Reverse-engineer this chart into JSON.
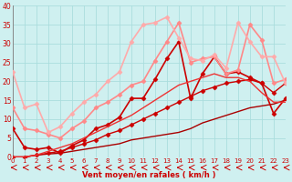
{
  "xlabel": "Vent moyen/en rafales ( km/h )",
  "bg_color": "#cff0f0",
  "grid_color": "#aadddd",
  "xmin": 0,
  "xmax": 23,
  "ymin": 0,
  "ymax": 40,
  "yticks": [
    0,
    5,
    10,
    15,
    20,
    25,
    30,
    35,
    40
  ],
  "series": [
    {
      "x": [
        0,
        1,
        2,
        3,
        4,
        5,
        6,
        7,
        8,
        9,
        10,
        11,
        12,
        13,
        14,
        15,
        16,
        17,
        18,
        19,
        20,
        21,
        22,
        23
      ],
      "y": [
        0,
        0,
        0.5,
        0.8,
        1.0,
        1.5,
        2.0,
        2.5,
        3.0,
        3.5,
        4.5,
        5.0,
        5.5,
        6.0,
        6.5,
        7.5,
        9.0,
        10.0,
        11.0,
        12.0,
        13.0,
        13.5,
        14.0,
        15.0
      ],
      "color": "#aa0000",
      "lw": 1.0,
      "marker": null
    },
    {
      "x": [
        0,
        1,
        2,
        3,
        4,
        5,
        6,
        7,
        8,
        9,
        10,
        11,
        12,
        13,
        14,
        15,
        16,
        17,
        18,
        19,
        20,
        21,
        22,
        23
      ],
      "y": [
        0,
        0,
        0.5,
        1.0,
        1.5,
        2.5,
        3.5,
        4.5,
        6.0,
        7.0,
        8.5,
        10.0,
        11.5,
        13.0,
        14.5,
        16.0,
        17.5,
        18.5,
        19.5,
        20.0,
        20.5,
        19.5,
        17.0,
        19.5
      ],
      "color": "#cc0000",
      "lw": 1.0,
      "marker": "D",
      "markersize": 2.5
    },
    {
      "x": [
        0,
        1,
        2,
        3,
        4,
        5,
        6,
        7,
        8,
        9,
        10,
        11,
        12,
        13,
        14,
        15,
        16,
        17,
        18,
        19,
        20,
        21,
        22,
        23
      ],
      "y": [
        7.5,
        2.5,
        2.0,
        2.5,
        1.0,
        3.0,
        4.5,
        7.5,
        8.5,
        10.5,
        15.5,
        15.5,
        20.5,
        26.0,
        30.5,
        15.5,
        22.0,
        26.5,
        22.0,
        22.5,
        21.0,
        19.5,
        11.5,
        15.5
      ],
      "color": "#cc0000",
      "lw": 1.2,
      "marker": "D",
      "markersize": 2.5
    },
    {
      "x": [
        0,
        1,
        2,
        3,
        4,
        5,
        6,
        7,
        8,
        9,
        10,
        11,
        12,
        13,
        14,
        15,
        16,
        17,
        18,
        19,
        20,
        21,
        22,
        23
      ],
      "y": [
        13.0,
        7.5,
        7.0,
        6.0,
        5.0,
        7.5,
        9.5,
        13.0,
        14.5,
        16.5,
        19.0,
        20.0,
        25.5,
        30.5,
        35.5,
        25.0,
        26.0,
        26.5,
        22.0,
        23.0,
        35.0,
        31.0,
        19.5,
        20.5
      ],
      "color": "#ff8888",
      "lw": 1.2,
      "marker": "D",
      "markersize": 2.5
    },
    {
      "x": [
        0,
        1,
        2,
        3,
        4,
        5,
        6,
        7,
        8,
        9,
        10,
        11,
        12,
        13,
        14,
        15,
        16,
        17,
        18,
        19,
        20,
        21,
        22,
        23
      ],
      "y": [
        22.5,
        13.0,
        14.0,
        6.5,
        8.0,
        11.5,
        14.5,
        16.5,
        20.0,
        22.5,
        30.5,
        35.0,
        35.5,
        37.0,
        31.5,
        26.0,
        25.5,
        27.0,
        23.5,
        35.5,
        30.5,
        26.5,
        26.5,
        19.5
      ],
      "color": "#ffaaaa",
      "lw": 1.2,
      "marker": "D",
      "markersize": 2.5
    },
    {
      "x": [
        0,
        1,
        2,
        3,
        4,
        5,
        6,
        7,
        8,
        9,
        10,
        11,
        12,
        13,
        14,
        15,
        16,
        17,
        18,
        19,
        20,
        21,
        22,
        23
      ],
      "y": [
        0,
        0,
        0.5,
        1.5,
        2.5,
        3.5,
        5.0,
        6.5,
        8.0,
        9.5,
        11.0,
        13.0,
        15.0,
        17.0,
        19.0,
        20.0,
        21.0,
        22.0,
        21.0,
        21.0,
        20.0,
        17.0,
        14.5,
        14.5
      ],
      "color": "#ee3333",
      "lw": 1.0,
      "marker": null
    }
  ]
}
